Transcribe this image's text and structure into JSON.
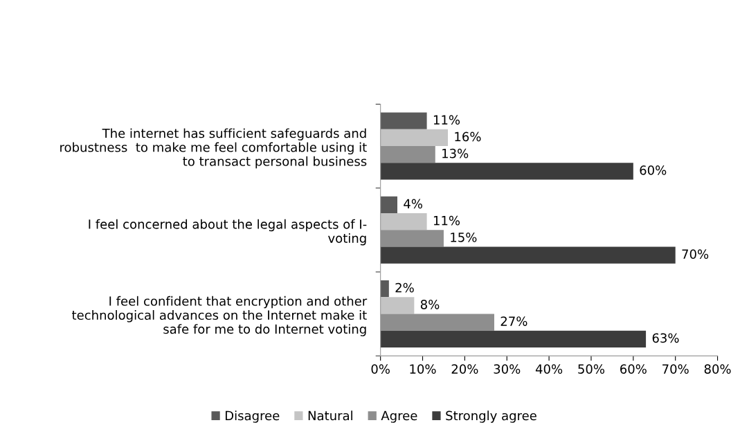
{
  "chart_data": {
    "type": "bar",
    "orientation": "horizontal",
    "categories": [
      "The internet has sufficient safeguards and\nrobustness  to make me feel comfortable using it\nto transact personal business",
      "I feel concerned about the legal aspects of I-\nvoting",
      "I feel confident that encryption and other\ntechnological advances on the Internet make it\nsafe for me to do Internet voting"
    ],
    "series": [
      {
        "name": "Disagree",
        "color": "#5a5a5a",
        "values": [
          11,
          4,
          2
        ],
        "value_labels": [
          "11%",
          "4%",
          "2%"
        ]
      },
      {
        "name": "Natural",
        "color": "#c4c4c4",
        "values": [
          16,
          11,
          8
        ],
        "value_labels": [
          "16%",
          "11%",
          "8%"
        ]
      },
      {
        "name": "Agree",
        "color": "#8e8e8e",
        "values": [
          13,
          15,
          27
        ],
        "value_labels": [
          "13%",
          "15%",
          "27%"
        ]
      },
      {
        "name": "Strongly agree",
        "color": "#3c3c3c",
        "values": [
          60,
          70,
          63
        ],
        "value_labels": [
          "60%",
          "70%",
          "63%"
        ]
      }
    ],
    "xlim": [
      0,
      80
    ],
    "xticks": [
      {
        "value": 0,
        "label": "0%"
      },
      {
        "value": 10,
        "label": "10%"
      },
      {
        "value": 20,
        "label": "20%"
      },
      {
        "value": 30,
        "label": "30%"
      },
      {
        "value": 40,
        "label": "40%"
      },
      {
        "value": 50,
        "label": "50%"
      },
      {
        "value": 60,
        "label": "60%"
      },
      {
        "value": 70,
        "label": "70%"
      },
      {
        "value": 80,
        "label": "80%"
      }
    ],
    "grid": false,
    "legend": "bottom"
  }
}
